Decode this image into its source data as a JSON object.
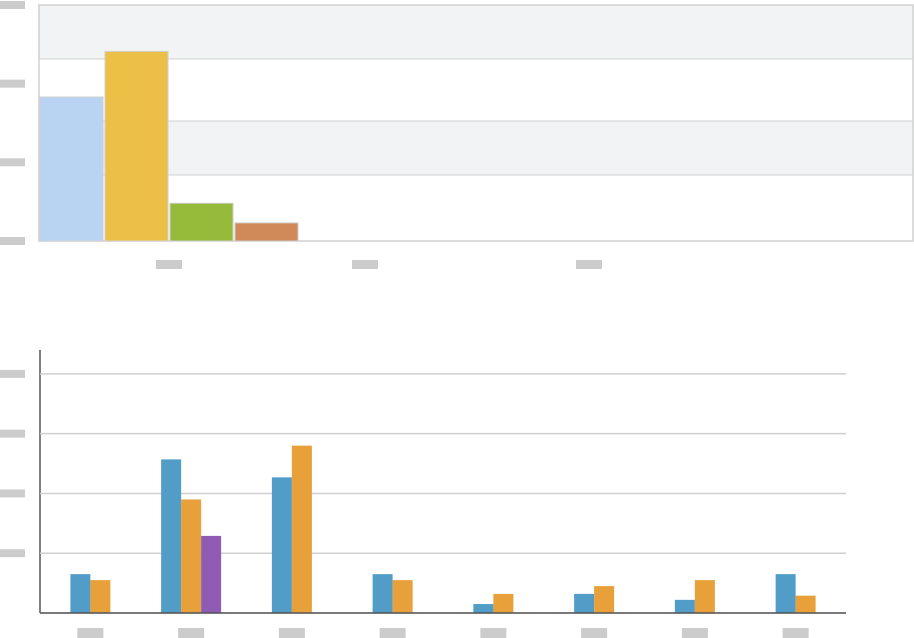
{
  "chart_data": [
    {
      "type": "bar",
      "categories": [
        null,
        null,
        null,
        null
      ],
      "values": [
        1.83,
        2.41,
        0.48,
        0.23
      ],
      "colors": [
        "#b8d4f2",
        "#ecc046",
        "#96bb3a",
        "#d08a5a"
      ],
      "ylim": [
        0,
        3
      ],
      "yticks": [
        0,
        1,
        2,
        3
      ]
    },
    {
      "type": "grouped-bar",
      "categories": [
        null,
        null,
        null,
        null,
        null,
        null,
        null,
        null
      ],
      "series": [
        {
          "color": "#519dc8",
          "values": [
            0.65,
            2.57,
            2.27,
            0.65,
            0.15,
            0.32,
            0.22,
            0.65
          ]
        },
        {
          "color": "#e8a03a",
          "values": [
            0.55,
            1.9,
            2.8,
            0.55,
            0.32,
            0.45,
            0.55,
            0.29
          ]
        },
        {
          "color": "#8f5bb5",
          "values": [
            null,
            1.29,
            null,
            null,
            null,
            null,
            null,
            null
          ]
        }
      ],
      "ylim": [
        0,
        4.4
      ],
      "yticks": [
        0,
        1,
        2,
        3,
        4
      ],
      "grid": true
    }
  ]
}
